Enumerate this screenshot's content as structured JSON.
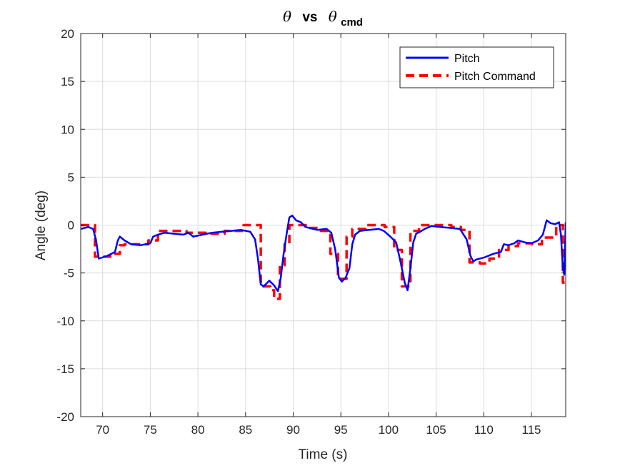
{
  "chart_data": {
    "type": "line",
    "title": {
      "symbol": "θ",
      "connector": "vs",
      "symbol2": "θ",
      "subscript": "cmd"
    },
    "xlabel": "Time (s)",
    "ylabel": "Angle (deg)",
    "xlim": [
      67.7,
      118.6
    ],
    "ylim": [
      -20,
      20
    ],
    "xticks": [
      70,
      75,
      80,
      85,
      90,
      95,
      100,
      105,
      110,
      115
    ],
    "yticks": [
      -20,
      -15,
      -10,
      -5,
      0,
      5,
      10,
      15,
      20
    ],
    "grid": true,
    "legend_position": "top-right",
    "series": [
      {
        "name": "Pitch",
        "color": "#0000FF",
        "style": "solid",
        "x": [
          67.7,
          68.5,
          69.0,
          69.3,
          69.6,
          70.5,
          71.3,
          71.6,
          71.8,
          72.3,
          73.0,
          74.0,
          75.0,
          75.3,
          75.8,
          76.5,
          77.5,
          78.5,
          79.0,
          79.5,
          80.5,
          81.5,
          82.5,
          83.5,
          84.5,
          85.5,
          86.0,
          86.3,
          86.6,
          86.9,
          87.5,
          88.0,
          88.4,
          88.7,
          89.0,
          89.3,
          89.6,
          89.9,
          90.3,
          90.8,
          91.3,
          92.5,
          93.5,
          94.0,
          94.4,
          94.8,
          95.1,
          95.5,
          95.9,
          96.2,
          96.5,
          97.0,
          98.0,
          99.0,
          99.5,
          100.2,
          100.8,
          101.3,
          101.7,
          102.0,
          102.3,
          102.6,
          102.9,
          103.3,
          103.8,
          104.5,
          105.5,
          106.5,
          107.5,
          108.2,
          108.6,
          108.9,
          109.2,
          110.0,
          111.0,
          111.8,
          112.1,
          112.6,
          113.2,
          113.6,
          114.3,
          115.0,
          115.7,
          116.2,
          116.6,
          117.0,
          117.5,
          117.9,
          118.1,
          118.3,
          118.45,
          118.6
        ],
        "y": [
          -0.4,
          -0.2,
          -0.4,
          -1.5,
          -3.5,
          -3.2,
          -2.8,
          -1.6,
          -1.2,
          -1.6,
          -2.0,
          -2.1,
          -1.9,
          -1.2,
          -1.0,
          -0.8,
          -0.9,
          -1.0,
          -0.8,
          -1.2,
          -1.0,
          -0.8,
          -0.7,
          -0.6,
          -0.5,
          -0.7,
          -1.5,
          -3.5,
          -6.2,
          -6.4,
          -5.8,
          -6.3,
          -6.9,
          -5.5,
          -3.0,
          -1.0,
          0.8,
          1.0,
          0.5,
          0.3,
          -0.2,
          -0.5,
          -0.4,
          -0.8,
          -2.5,
          -5.5,
          -5.9,
          -5.5,
          -4.5,
          -2.0,
          -1.0,
          -0.6,
          -0.5,
          -0.4,
          -0.6,
          -1.2,
          -1.8,
          -4.0,
          -6.0,
          -6.8,
          -4.5,
          -1.8,
          -0.9,
          -0.7,
          -0.4,
          -0.1,
          -0.2,
          -0.3,
          -0.4,
          -1.5,
          -3.2,
          -3.8,
          -3.6,
          -3.4,
          -3.0,
          -2.8,
          -2.0,
          -2.1,
          -1.9,
          -1.6,
          -1.8,
          -1.9,
          -1.6,
          -1.0,
          0.5,
          0.2,
          0.1,
          0.3,
          -1.0,
          -4.5,
          -5.2,
          0.3
        ]
      },
      {
        "name": "Pitch Command",
        "color": "#FF0000",
        "style": "dashed",
        "x": [
          67.7,
          69.2,
          69.2,
          70.8,
          70.8,
          71.8,
          71.8,
          72.3,
          72.3,
          74.8,
          74.8,
          75.8,
          75.8,
          78.8,
          78.8,
          80.8,
          80.8,
          82.8,
          82.8,
          84.8,
          84.8,
          86.6,
          86.6,
          87.6,
          87.6,
          88.0,
          88.0,
          88.6,
          88.6,
          89.1,
          89.1,
          89.6,
          89.6,
          91.6,
          91.6,
          92.9,
          92.9,
          93.9,
          93.9,
          94.7,
          94.7,
          95.6,
          95.6,
          96.2,
          96.2,
          97.6,
          97.6,
          99.6,
          99.6,
          100.6,
          100.6,
          101.4,
          101.4,
          102.3,
          102.3,
          103.2,
          103.2,
          106.6,
          106.6,
          107.6,
          107.6,
          108.5,
          108.5,
          109.6,
          109.6,
          110.6,
          110.6,
          111.6,
          111.6,
          112.6,
          112.6,
          113.6,
          113.6,
          115.1,
          115.1,
          116.1,
          116.1,
          117.6,
          117.6,
          118.3,
          118.3,
          118.6
        ],
        "y": [
          0.0,
          0.0,
          -3.3,
          -3.3,
          -3.0,
          -3.0,
          -2.1,
          -2.1,
          -2.0,
          -2.0,
          -1.6,
          -1.6,
          -0.6,
          -0.6,
          -0.8,
          -0.8,
          -0.9,
          -0.9,
          -0.6,
          -0.6,
          0.0,
          0.0,
          -6.4,
          -6.4,
          -6.8,
          -6.8,
          -7.7,
          -7.7,
          -4.2,
          -4.2,
          -2.0,
          -2.0,
          0.0,
          0.0,
          -0.3,
          -0.3,
          -0.6,
          -0.6,
          -3.0,
          -3.0,
          -5.6,
          -5.6,
          -1.2,
          -1.2,
          -0.4,
          -0.4,
          0.0,
          0.0,
          -0.2,
          -0.2,
          -2.6,
          -2.6,
          -6.4,
          -6.4,
          -0.6,
          -0.6,
          0.0,
          0.0,
          -0.2,
          -0.2,
          -0.5,
          -0.5,
          -3.9,
          -3.9,
          -4.0,
          -4.0,
          -3.5,
          -3.5,
          -2.6,
          -2.6,
          -2.2,
          -2.2,
          -1.9,
          -1.9,
          -2.0,
          -2.0,
          -1.3,
          -1.3,
          0.0,
          0.0,
          -6.0,
          -6.0
        ]
      }
    ]
  }
}
